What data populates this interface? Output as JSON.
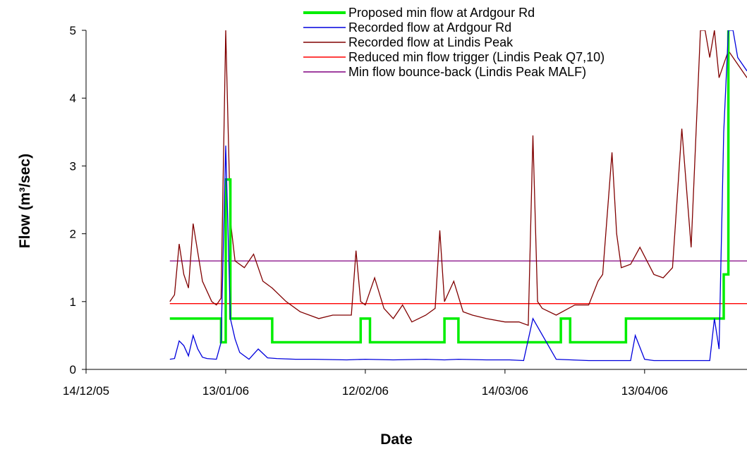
{
  "chart_data": {
    "type": "line",
    "title": "",
    "xlabel": "Date",
    "ylabel": "Flow (m³/sec)",
    "xlim": [
      "2005-12-14",
      "2006-05-05"
    ],
    "ylim": [
      0,
      5
    ],
    "x_ticks": [
      "2005-12-14",
      "2006-01-13",
      "2006-02-12",
      "2006-03-14",
      "2006-04-13"
    ],
    "x_tick_labels": [
      "14/12/05",
      "13/01/06",
      "12/02/06",
      "14/03/06",
      "13/04/06"
    ],
    "y_ticks": [
      0,
      1,
      2,
      3,
      4,
      5
    ],
    "grid": false,
    "legend_position": "top-right",
    "series": [
      {
        "name": "Proposed min flow at Ardgour Rd",
        "color": "#00ee00",
        "kind": "step",
        "x": [
          "2006-01-01",
          "2006-01-11",
          "2006-01-12",
          "2006-01-13",
          "2006-01-14",
          "2006-01-23",
          "2006-02-11",
          "2006-02-13",
          "2006-03-01",
          "2006-03-04",
          "2006-03-26",
          "2006-03-28",
          "2006-04-09",
          "2006-04-29",
          "2006-04-30",
          "2006-05-01"
        ],
        "y": [
          0.75,
          0.75,
          0.4,
          2.8,
          0.75,
          0.4,
          0.75,
          0.4,
          0.75,
          0.4,
          0.75,
          0.4,
          0.75,
          0.75,
          1.4,
          5.0
        ]
      },
      {
        "name": "Recorded flow at Ardgour Rd",
        "color": "#0000dd",
        "x": [
          "2006-01-01",
          "2006-01-02",
          "2006-01-03",
          "2006-01-04",
          "2006-01-05",
          "2006-01-06",
          "2006-01-07",
          "2006-01-08",
          "2006-01-09",
          "2006-01-11",
          "2006-01-12",
          "2006-01-13",
          "2006-01-14",
          "2006-01-15",
          "2006-01-16",
          "2006-01-18",
          "2006-01-20",
          "2006-01-22",
          "2006-01-24",
          "2006-01-28",
          "2006-02-01",
          "2006-02-08",
          "2006-02-12",
          "2006-02-18",
          "2006-02-25",
          "2006-03-01",
          "2006-03-04",
          "2006-03-10",
          "2006-03-15",
          "2006-03-18",
          "2006-03-20",
          "2006-03-25",
          "2006-04-01",
          "2006-04-08",
          "2006-04-10",
          "2006-04-11",
          "2006-04-13",
          "2006-04-15",
          "2006-04-20",
          "2006-04-27",
          "2006-04-28",
          "2006-04-29",
          "2006-04-30",
          "2006-05-01",
          "2006-05-02",
          "2006-05-03",
          "2006-05-05"
        ],
        "y": [
          0.15,
          0.16,
          0.42,
          0.35,
          0.2,
          0.5,
          0.3,
          0.18,
          0.16,
          0.15,
          0.4,
          3.3,
          0.75,
          0.45,
          0.25,
          0.15,
          0.3,
          0.17,
          0.16,
          0.15,
          0.15,
          0.14,
          0.15,
          0.14,
          0.15,
          0.14,
          0.15,
          0.14,
          0.14,
          0.13,
          0.75,
          0.15,
          0.13,
          0.13,
          0.13,
          0.5,
          0.15,
          0.13,
          0.13,
          0.13,
          0.75,
          0.3,
          3.5,
          5.0,
          5.0,
          4.6,
          4.4
        ]
      },
      {
        "name": "Recorded flow at Lindis Peak",
        "color": "#800000",
        "x": [
          "2006-01-01",
          "2006-01-02",
          "2006-01-03",
          "2006-01-04",
          "2006-01-05",
          "2006-01-06",
          "2006-01-08",
          "2006-01-10",
          "2006-01-11",
          "2006-01-12",
          "2006-01-13",
          "2006-01-14",
          "2006-01-15",
          "2006-01-17",
          "2006-01-19",
          "2006-01-21",
          "2006-01-23",
          "2006-01-26",
          "2006-01-29",
          "2006-02-02",
          "2006-02-05",
          "2006-02-09",
          "2006-02-10",
          "2006-02-11",
          "2006-02-12",
          "2006-02-14",
          "2006-02-16",
          "2006-02-18",
          "2006-02-20",
          "2006-02-22",
          "2006-02-25",
          "2006-02-27",
          "2006-02-28",
          "2006-03-01",
          "2006-03-03",
          "2006-03-05",
          "2006-03-07",
          "2006-03-10",
          "2006-03-14",
          "2006-03-17",
          "2006-03-19",
          "2006-03-20",
          "2006-03-21",
          "2006-03-22",
          "2006-03-25",
          "2006-03-29",
          "2006-04-01",
          "2006-04-03",
          "2006-04-04",
          "2006-04-06",
          "2006-04-07",
          "2006-04-08",
          "2006-04-10",
          "2006-04-12",
          "2006-04-15",
          "2006-04-17",
          "2006-04-19",
          "2006-04-21",
          "2006-04-23",
          "2006-04-25",
          "2006-04-26",
          "2006-04-27",
          "2006-04-28",
          "2006-04-29",
          "2006-04-30",
          "2006-05-01",
          "2006-05-03",
          "2006-05-05"
        ],
        "y": [
          1.0,
          1.1,
          1.85,
          1.4,
          1.2,
          2.15,
          1.3,
          1.0,
          0.95,
          1.05,
          5.0,
          2.2,
          1.6,
          1.5,
          1.7,
          1.3,
          1.2,
          1.0,
          0.85,
          0.75,
          0.8,
          0.8,
          1.75,
          1.0,
          0.95,
          1.35,
          0.9,
          0.75,
          0.95,
          0.7,
          0.8,
          0.9,
          2.05,
          1.0,
          1.3,
          0.85,
          0.8,
          0.75,
          0.7,
          0.7,
          0.65,
          3.45,
          1.0,
          0.9,
          0.8,
          0.95,
          0.95,
          1.3,
          1.4,
          3.2,
          2.0,
          1.5,
          1.55,
          1.8,
          1.4,
          1.35,
          1.5,
          3.55,
          1.8,
          5.0,
          5.0,
          4.6,
          5.0,
          4.3,
          4.5,
          4.7,
          4.5,
          4.3
        ]
      },
      {
        "name": "Reduced min flow trigger (Lindis Peak Q7,10)",
        "color": "#ff0000",
        "x": [
          "2006-01-01",
          "2006-05-05"
        ],
        "y": [
          0.97,
          0.97
        ]
      },
      {
        "name": "Min flow bounce-back (Lindis Peak MALF)",
        "color": "#800080",
        "x": [
          "2006-01-01",
          "2006-05-05"
        ],
        "y": [
          1.6,
          1.6
        ]
      }
    ]
  }
}
